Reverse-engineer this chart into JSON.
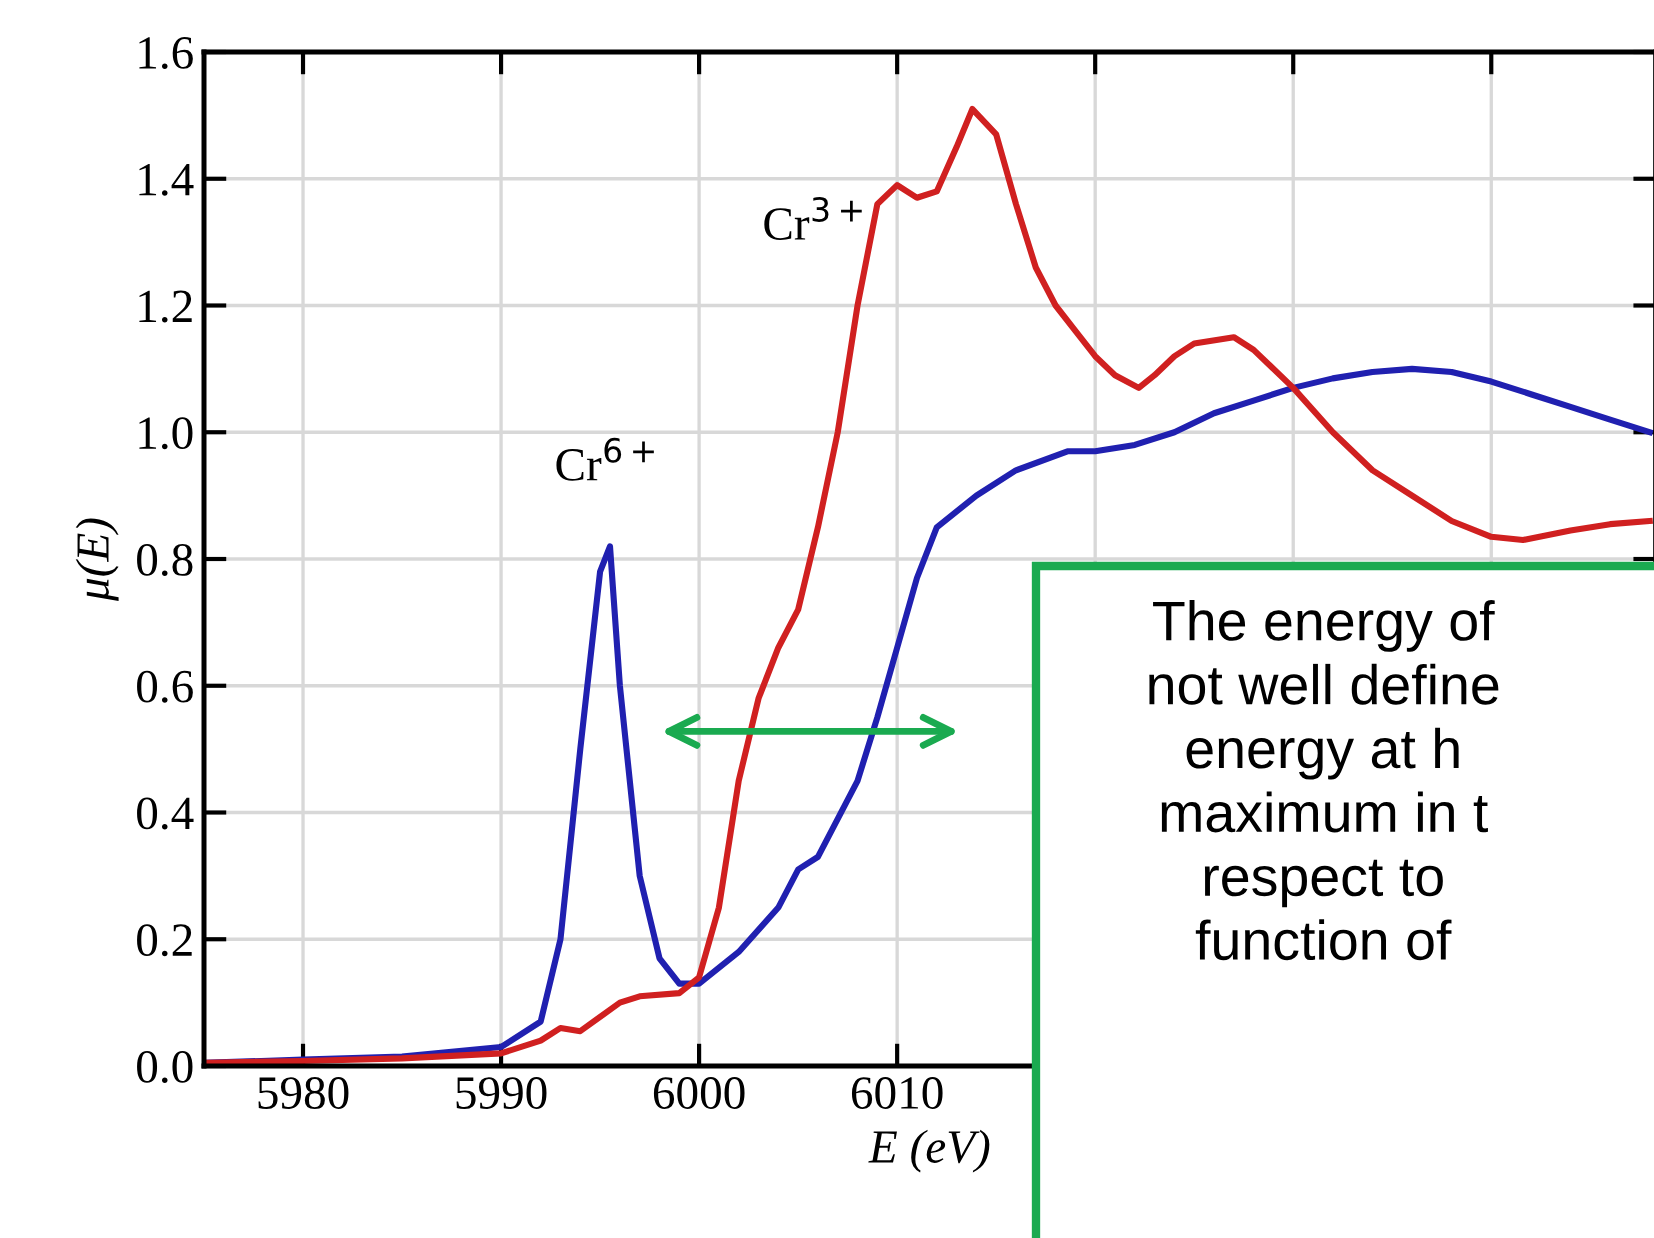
{
  "chart_data": {
    "type": "line",
    "xlabel": "E (eV)",
    "ylabel": "μ(E)",
    "xlim": [
      5975,
      6048.3
    ],
    "ylim": [
      0,
      1.6
    ],
    "xticks": [
      5980,
      5990,
      6000,
      6010,
      {
        "value": 6020,
        "label": null
      },
      {
        "value": 6030,
        "label": null
      },
      {
        "value": 6040,
        "label": null
      }
    ],
    "yticks": [
      {
        "value": 0,
        "label": "0.0"
      },
      0.2,
      0.4,
      0.6,
      0.8,
      {
        "value": 1,
        "label": "1.0"
      },
      1.2,
      1.4,
      1.6
    ],
    "grid": true,
    "series": [
      {
        "color": "#2020b0",
        "x": [
          5975,
          5980,
          5985,
          5990,
          5992,
          5993,
          5994,
          5995,
          5995.5,
          5996,
          5997,
          5998,
          5999,
          6000,
          6002,
          6004,
          6005,
          6006,
          6008,
          6009,
          6010,
          6011,
          6012,
          6014,
          6016,
          6018.6,
          6020,
          6022,
          6024,
          6026,
          6028,
          6030,
          6032,
          6034,
          6036,
          6038,
          6040,
          6042,
          6044,
          6046,
          6048
        ],
        "values": [
          0.005,
          0.01,
          0.015,
          0.03,
          0.07,
          0.2,
          0.5,
          0.78,
          0.82,
          0.6,
          0.3,
          0.17,
          0.13,
          0.13,
          0.18,
          0.25,
          0.31,
          0.33,
          0.45,
          0.55,
          0.66,
          0.77,
          0.85,
          0.9,
          0.94,
          0.97,
          0.97,
          0.98,
          1.0,
          1.03,
          1.05,
          1.07,
          1.085,
          1.095,
          1.1,
          1.095,
          1.08,
          1.06,
          1.04,
          1.02,
          1.0
        ]
      },
      {
        "color": "#d02020",
        "x": [
          5975,
          5980,
          5985,
          5990,
          5992,
          5993,
          5994,
          5996,
          5997,
          5999,
          6000,
          6001,
          6002,
          6003,
          6004,
          6005,
          6006,
          6007,
          6008,
          6009,
          6010,
          6011,
          6012,
          6013,
          6013.8,
          6015,
          6016,
          6017,
          6018,
          6019,
          6020,
          6021,
          6022.2,
          6023,
          6024,
          6025,
          6027,
          6028,
          6030,
          6032,
          6034,
          6036,
          6038,
          6040,
          6041.6,
          6044,
          6046,
          6048
        ],
        "values": [
          0.005,
          0.008,
          0.012,
          0.02,
          0.04,
          0.06,
          0.055,
          0.1,
          0.11,
          0.115,
          0.14,
          0.25,
          0.45,
          0.58,
          0.66,
          0.72,
          0.85,
          1.0,
          1.2,
          1.36,
          1.39,
          1.37,
          1.38,
          1.45,
          1.51,
          1.47,
          1.36,
          1.26,
          1.2,
          1.16,
          1.12,
          1.09,
          1.07,
          1.09,
          1.12,
          1.14,
          1.15,
          1.13,
          1.07,
          1.0,
          0.94,
          0.9,
          0.86,
          0.835,
          0.83,
          0.845,
          0.855,
          0.86
        ]
      }
    ],
    "annotations": [
      {
        "text": "Cr$^{6+}$",
        "x": 5995.5,
        "y": 0.82
      },
      {
        "text": "Cr$^{3+}$",
        "x": 6007.4,
        "y": 1.2
      },
      "The energy of\nnot well define\nenergy at h\nmaximum in t\nrespect to\nfunction of"
    ]
  }
}
